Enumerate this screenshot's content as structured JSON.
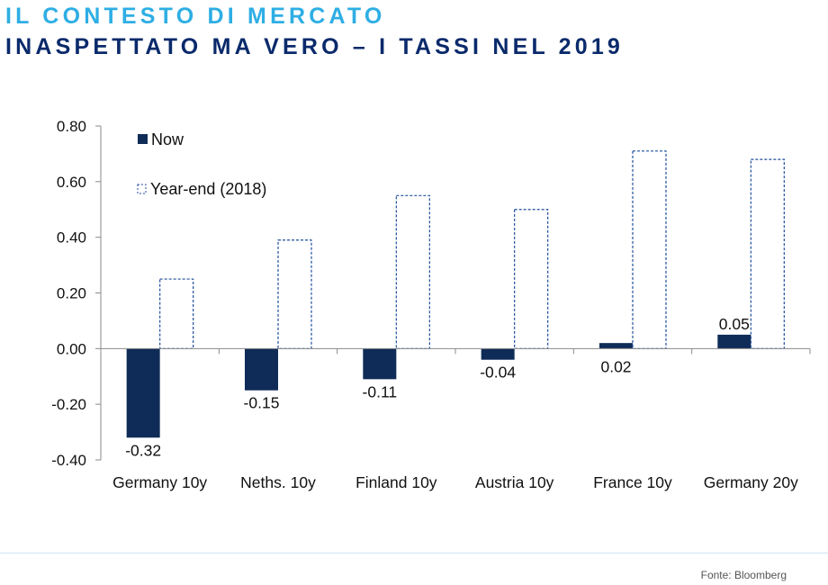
{
  "header": {
    "title_line1": "IL CONTESTO DI MERCATO",
    "title_line2": "INASPETTATO MA VERO – I TASSI NEL 2019"
  },
  "footer": {
    "source": "Fonte: Bloomberg"
  },
  "colors": {
    "title1": "#2eaee4",
    "title2": "#0a2a6b",
    "now_bar": "#0f2c58",
    "yearend_outline": "#1f4e9c"
  },
  "chart_data": {
    "type": "bar",
    "categories": [
      "Germany 10y",
      "Neths. 10y",
      "Finland 10y",
      "Austria 10y",
      "France 10y",
      "Germany 20y"
    ],
    "series": [
      {
        "name": "Now",
        "values": [
          -0.32,
          -0.15,
          -0.11,
          -0.04,
          0.02,
          0.05
        ],
        "labels": [
          "-0.32",
          "-0.15",
          "-0.11",
          "-0.04",
          "0.02",
          "0.05"
        ],
        "style": "filled"
      },
      {
        "name": "Year-end (2018)",
        "values": [
          0.25,
          0.39,
          0.55,
          0.5,
          0.71,
          0.68
        ],
        "style": "dashed-outline"
      }
    ],
    "ylim": [
      -0.4,
      0.8
    ],
    "yticks": [
      0.8,
      0.6,
      0.4,
      0.2,
      0.0,
      -0.2,
      -0.4
    ],
    "ytick_labels": [
      "0.80",
      "0.60",
      "0.40",
      "0.20",
      "0.00",
      "-0.20",
      "-0.40"
    ],
    "legend_position": "top-left",
    "grid": false
  }
}
